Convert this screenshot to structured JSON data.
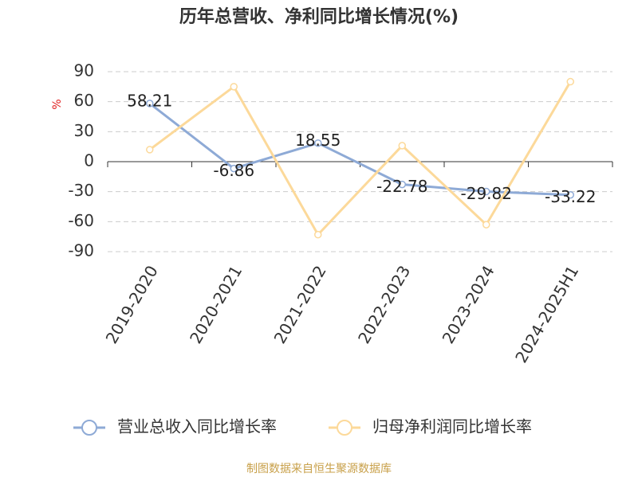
{
  "chart_data": {
    "type": "line",
    "title": "历年总营收、净利同比增长情况(%)",
    "y_label": "%",
    "categories": [
      "2019-2020",
      "2020-2021",
      "2021-2022",
      "2022-2023",
      "2023-2024",
      "2024-2025H1"
    ],
    "series": [
      {
        "name": "营业总收入同比增长率",
        "color": "#8eaad6",
        "values": [
          58.21,
          -6.86,
          18.55,
          -22.78,
          -29.82,
          -33.22
        ],
        "data_labels": true
      },
      {
        "name": "归母净利润同比增长率",
        "color": "#fcd99a",
        "values": [
          12,
          75,
          -73,
          16,
          -63,
          80
        ],
        "data_labels": false
      }
    ],
    "ylim": [
      -90,
      90
    ],
    "yticks": [
      -90,
      -60,
      -30,
      0,
      30,
      60,
      90
    ],
    "grid": true,
    "source": "制图数据来自恒生聚源数据库"
  }
}
